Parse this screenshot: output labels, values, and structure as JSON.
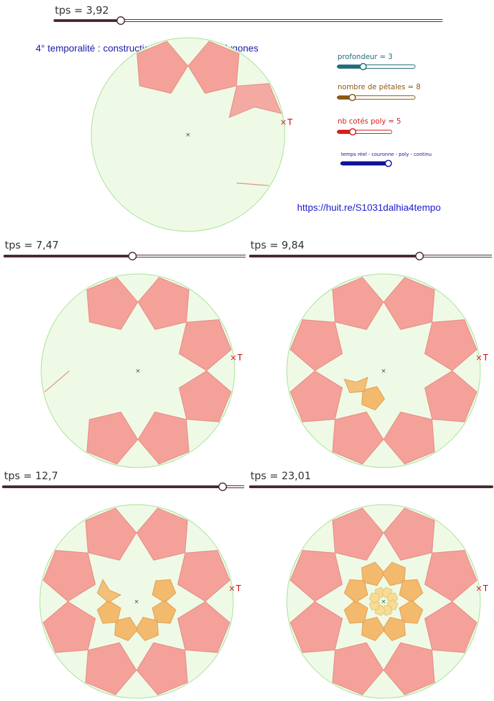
{
  "title": "4° temporalité : construction continue des polygones",
  "url": "https://huit.re/S1031dalhia4tempo",
  "controls": [
    {
      "label": "profondeur = 3",
      "value": 3,
      "fraction": 0.33,
      "color": "#1f6e7a"
    },
    {
      "label": "nombre de pétales = 8",
      "value": 8,
      "fraction": 0.19,
      "color": "#8a5a12"
    },
    {
      "label": "nb cotés poly = 5",
      "value": 5,
      "fraction": 0.28,
      "color": "#d42020"
    },
    {
      "label": "temps réel - couronne - poly - continu",
      "value": 4,
      "fraction": 1.0,
      "color": "#10149a"
    }
  ],
  "panels": [
    {
      "tps_label": "tps = 3,92",
      "tps": 3.92,
      "slider_fraction": 0.17,
      "point_label": "T"
    },
    {
      "tps_label": "tps = 7,47",
      "tps": 7.47,
      "slider_fraction": 0.53,
      "point_label": "T"
    },
    {
      "tps_label": "tps = 9,84",
      "tps": 9.84,
      "slider_fraction": 0.7,
      "point_label": "T"
    },
    {
      "tps_label": "tps = 12,7",
      "tps": 12.7,
      "slider_fraction": 0.91,
      "point_label": "T"
    },
    {
      "tps_label": "tps = 23,01",
      "tps": 23.01,
      "slider_fraction": 1.0,
      "point_label": "T"
    }
  ],
  "colors": {
    "disk_fill": "#eefae6",
    "disk_stroke": "#a6e196",
    "outer_petal": "#f4a19a",
    "inner_petal": "#f3b96d",
    "core_petal": "#f6dc96",
    "slider_track": "#4a2a32",
    "center_mark": "#2e5a2e",
    "point_mark": "#d42020"
  }
}
